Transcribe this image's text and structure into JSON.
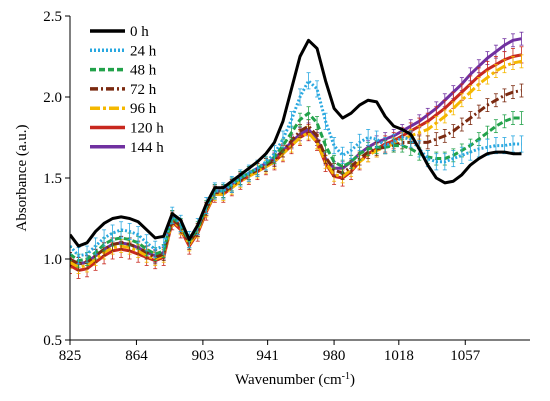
{
  "chart_data": {
    "type": "line",
    "title": "",
    "xlabel": "Wavenumber (cm",
    "xlabel_sup": "-1",
    "xlabel_close": ")",
    "ylabel": "Absorbance (a.u.)",
    "xlim": [
      825,
      1095
    ],
    "ylim": [
      0.5,
      2.5
    ],
    "xticks": [
      825,
      864,
      903,
      941,
      980,
      1018,
      1057
    ],
    "yticks": [
      0.5,
      1.0,
      1.5,
      2.0,
      2.5
    ],
    "ytick_labels": [
      "0.5",
      "1.0",
      "1.5",
      "2.0",
      "2.5"
    ],
    "legend_position": "top-left",
    "grid": false,
    "x": [
      825,
      830,
      835,
      840,
      845,
      850,
      855,
      860,
      865,
      870,
      875,
      880,
      885,
      890,
      895,
      900,
      905,
      910,
      915,
      920,
      925,
      930,
      935,
      940,
      945,
      950,
      955,
      960,
      965,
      970,
      975,
      980,
      985,
      990,
      995,
      1000,
      1005,
      1010,
      1015,
      1020,
      1025,
      1030,
      1035,
      1040,
      1045,
      1050,
      1055,
      1060,
      1065,
      1070,
      1075,
      1080,
      1085,
      1090
    ],
    "series": [
      {
        "name": "0 h",
        "color": "#000000",
        "dash": "solid",
        "error": 0,
        "values": [
          1.15,
          1.08,
          1.1,
          1.17,
          1.22,
          1.25,
          1.26,
          1.25,
          1.23,
          1.18,
          1.13,
          1.14,
          1.28,
          1.24,
          1.12,
          1.21,
          1.34,
          1.44,
          1.44,
          1.48,
          1.52,
          1.56,
          1.6,
          1.65,
          1.72,
          1.85,
          2.05,
          2.25,
          2.35,
          2.3,
          2.1,
          1.93,
          1.87,
          1.9,
          1.95,
          1.98,
          1.97,
          1.88,
          1.82,
          1.8,
          1.77,
          1.68,
          1.58,
          1.5,
          1.47,
          1.48,
          1.52,
          1.58,
          1.62,
          1.65,
          1.66,
          1.66,
          1.65,
          1.65
        ]
      },
      {
        "name": "24 h",
        "color": "#29A8E0",
        "dash": "dotted",
        "error": 0.05,
        "values": [
          1.08,
          1.02,
          1.03,
          1.08,
          1.13,
          1.16,
          1.18,
          1.17,
          1.15,
          1.1,
          1.06,
          1.08,
          1.27,
          1.22,
          1.12,
          1.2,
          1.33,
          1.42,
          1.42,
          1.46,
          1.5,
          1.53,
          1.56,
          1.6,
          1.65,
          1.74,
          1.86,
          2.0,
          2.1,
          2.05,
          1.85,
          1.7,
          1.64,
          1.67,
          1.72,
          1.75,
          1.74,
          1.7,
          1.72,
          1.75,
          1.74,
          1.68,
          1.62,
          1.6,
          1.6,
          1.62,
          1.64,
          1.66,
          1.68,
          1.69,
          1.7,
          1.7,
          1.71,
          1.71
        ]
      },
      {
        "name": "48 h",
        "color": "#22A24A",
        "dash": "dashed",
        "error": 0.04,
        "values": [
          1.03,
          0.99,
          1.0,
          1.04,
          1.09,
          1.12,
          1.13,
          1.12,
          1.1,
          1.06,
          1.03,
          1.05,
          1.26,
          1.21,
          1.11,
          1.19,
          1.32,
          1.42,
          1.42,
          1.46,
          1.5,
          1.53,
          1.56,
          1.59,
          1.63,
          1.7,
          1.78,
          1.86,
          1.9,
          1.84,
          1.7,
          1.6,
          1.57,
          1.6,
          1.65,
          1.68,
          1.69,
          1.69,
          1.7,
          1.7,
          1.68,
          1.65,
          1.63,
          1.62,
          1.62,
          1.64,
          1.67,
          1.7,
          1.74,
          1.78,
          1.82,
          1.85,
          1.87,
          1.87
        ]
      },
      {
        "name": "72 h",
        "color": "#7B2A10",
        "dash": "dashdot",
        "error": 0.04,
        "values": [
          1.0,
          0.97,
          0.98,
          1.02,
          1.06,
          1.09,
          1.1,
          1.09,
          1.07,
          1.04,
          1.01,
          1.03,
          1.25,
          1.2,
          1.1,
          1.18,
          1.31,
          1.41,
          1.41,
          1.45,
          1.49,
          1.52,
          1.55,
          1.58,
          1.61,
          1.67,
          1.73,
          1.79,
          1.82,
          1.76,
          1.63,
          1.55,
          1.53,
          1.57,
          1.62,
          1.66,
          1.68,
          1.69,
          1.7,
          1.72,
          1.72,
          1.72,
          1.72,
          1.74,
          1.76,
          1.79,
          1.83,
          1.87,
          1.91,
          1.95,
          1.98,
          2.01,
          2.03,
          2.04
        ]
      },
      {
        "name": "96 h",
        "color": "#F5B800",
        "dash": "longdashdot",
        "error": 0.04,
        "values": [
          0.98,
          0.95,
          0.96,
          1.0,
          1.04,
          1.07,
          1.08,
          1.07,
          1.05,
          1.02,
          1.0,
          1.02,
          1.24,
          1.19,
          1.09,
          1.17,
          1.3,
          1.4,
          1.4,
          1.44,
          1.48,
          1.51,
          1.54,
          1.57,
          1.6,
          1.65,
          1.7,
          1.75,
          1.78,
          1.72,
          1.6,
          1.52,
          1.51,
          1.55,
          1.6,
          1.64,
          1.67,
          1.69,
          1.71,
          1.74,
          1.76,
          1.78,
          1.8,
          1.84,
          1.88,
          1.93,
          1.98,
          2.03,
          2.08,
          2.12,
          2.16,
          2.19,
          2.21,
          2.22
        ]
      },
      {
        "name": "120 h",
        "color": "#C8281E",
        "dash": "solid",
        "error": 0.05,
        "values": [
          0.96,
          0.93,
          0.94,
          0.98,
          1.02,
          1.05,
          1.06,
          1.05,
          1.03,
          1.01,
          0.99,
          1.01,
          1.23,
          1.18,
          1.08,
          1.16,
          1.29,
          1.4,
          1.4,
          1.44,
          1.48,
          1.51,
          1.54,
          1.57,
          1.6,
          1.65,
          1.7,
          1.75,
          1.78,
          1.72,
          1.59,
          1.51,
          1.5,
          1.54,
          1.6,
          1.65,
          1.68,
          1.71,
          1.73,
          1.76,
          1.79,
          1.82,
          1.85,
          1.89,
          1.93,
          1.98,
          2.03,
          2.08,
          2.13,
          2.17,
          2.2,
          2.23,
          2.25,
          2.26
        ]
      },
      {
        "name": "144 h",
        "color": "#7030A0",
        "dash": "solid",
        "error": 0.04,
        "values": [
          1.0,
          0.97,
          0.98,
          1.02,
          1.06,
          1.09,
          1.1,
          1.09,
          1.07,
          1.04,
          1.02,
          1.04,
          1.26,
          1.2,
          1.1,
          1.18,
          1.31,
          1.42,
          1.42,
          1.46,
          1.5,
          1.53,
          1.56,
          1.59,
          1.62,
          1.67,
          1.72,
          1.77,
          1.8,
          1.74,
          1.62,
          1.56,
          1.56,
          1.6,
          1.65,
          1.69,
          1.72,
          1.74,
          1.76,
          1.79,
          1.82,
          1.85,
          1.89,
          1.93,
          1.98,
          2.03,
          2.08,
          2.14,
          2.19,
          2.24,
          2.28,
          2.32,
          2.35,
          2.36
        ]
      }
    ]
  }
}
